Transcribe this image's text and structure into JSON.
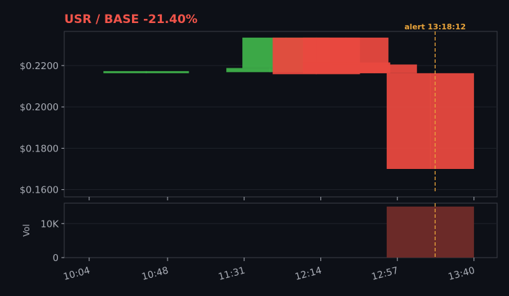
{
  "chart_data": {
    "type": "candlestick",
    "title": "USR / BASE  -21.40%",
    "colors": {
      "up": "#3fb14a",
      "down": "#e8493f",
      "title": "#f0544a",
      "alert": "#e8a33a",
      "volume": "#6b2a28",
      "background": "#0d1017",
      "axis": "#3a3e47",
      "text": "#a9adb6"
    },
    "price_axis": {
      "ticks": [
        0.16,
        0.18,
        0.2,
        0.22
      ],
      "tick_labels": [
        "$0.1600",
        "$0.1800",
        "$0.2000",
        "$0.2200"
      ],
      "range": [
        0.1565,
        0.2365
      ]
    },
    "time_axis": {
      "tick_times": [
        "10:04",
        "10:48",
        "11:31",
        "12:14",
        "12:57",
        "13:40"
      ],
      "tick_minutes": [
        604,
        648,
        691,
        734,
        777,
        820
      ],
      "range": [
        590,
        833
      ]
    },
    "candles": [
      {
        "start": 612,
        "end": 660,
        "open": 0.2163,
        "close": 0.2173,
        "high": 0.2173,
        "low": 0.2163
      },
      {
        "start": 681,
        "end": 730,
        "open": 0.2168,
        "close": 0.2188,
        "high": 0.2188,
        "low": 0.2168
      },
      {
        "start": 690,
        "end": 739,
        "open": 0.2188,
        "close": 0.2335,
        "high": 0.2335,
        "low": 0.2188
      },
      {
        "start": 707,
        "end": 756,
        "open": 0.2335,
        "close": 0.2158,
        "high": 0.2335,
        "low": 0.2158
      },
      {
        "start": 724,
        "end": 772,
        "open": 0.2335,
        "close": 0.2172,
        "high": 0.2335,
        "low": 0.2172
      },
      {
        "start": 724,
        "end": 773,
        "open": 0.2215,
        "close": 0.2163,
        "high": 0.2215,
        "low": 0.2163
      },
      {
        "start": 740,
        "end": 788,
        "open": 0.2205,
        "close": 0.2163,
        "high": 0.2205,
        "low": 0.2163
      },
      {
        "start": 771,
        "end": 820,
        "open": 0.2163,
        "close": 0.17,
        "high": 0.2163,
        "low": 0.17
      }
    ],
    "volume": {
      "label": "Vol",
      "ticks": [
        0,
        10000
      ],
      "tick_labels": [
        "0",
        "10K"
      ],
      "range": [
        0,
        16000
      ],
      "bars": [
        {
          "start": 771,
          "end": 820,
          "value": 15000
        }
      ]
    },
    "alert": {
      "label": "alert 13:18:12",
      "minute": 798.2
    }
  }
}
